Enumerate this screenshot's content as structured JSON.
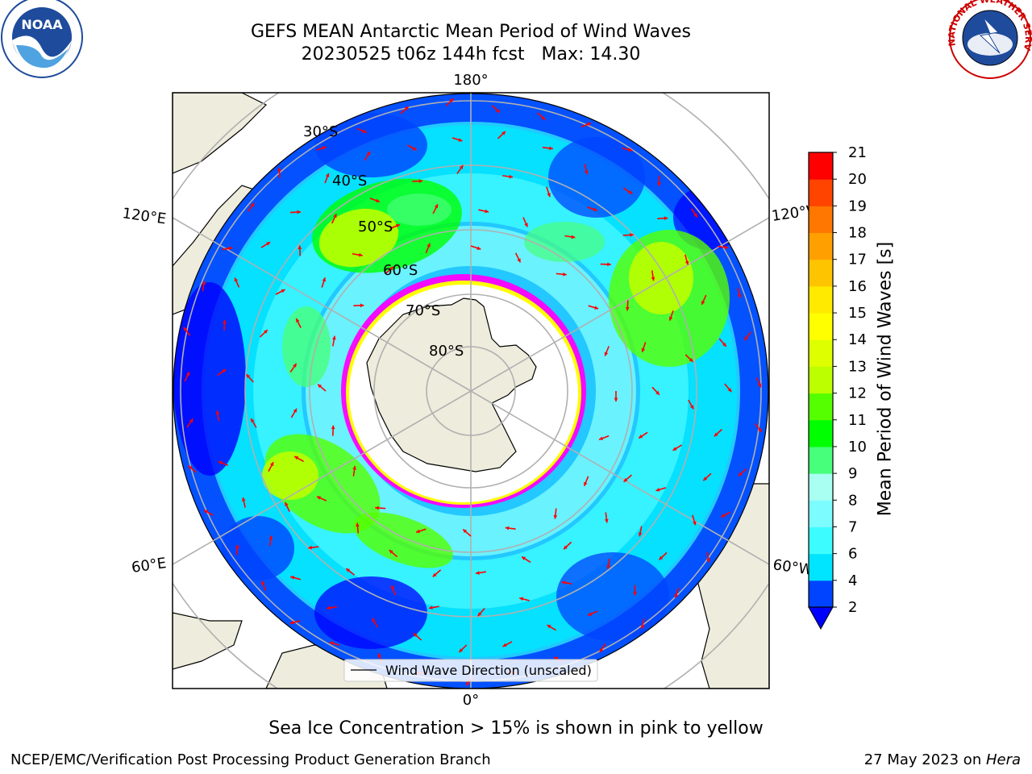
{
  "title": {
    "line1": "GEFS MEAN Antarctic Mean Period of Wind Waves",
    "line2": "20230525 t06z 144h fcst   Max: 14.30"
  },
  "map": {
    "projection": "south-polar-stereographic",
    "latitude_labels": [
      "30°S",
      "40°S",
      "50°S",
      "60°S",
      "70°S",
      "80°S"
    ],
    "longitude_labels": {
      "top": "180°",
      "bottom": "0°",
      "left_upper": "120°E",
      "left_lower": "60°E",
      "right_upper": "120°W",
      "right_lower": "60°W"
    },
    "legend_label": "Wind Wave Direction (unscaled)",
    "land_color": "#eeecdc",
    "arrow_color": "#ff0000",
    "sea_ice_colors": [
      "#ff00ff",
      "#ffff00"
    ]
  },
  "colorbar": {
    "label": "Mean Period of Wind Waves [s]",
    "ticks": [
      "2",
      "4",
      "6",
      "7",
      "8",
      "9",
      "10",
      "11",
      "12",
      "13",
      "14",
      "15",
      "16",
      "17",
      "18",
      "19",
      "20",
      "21"
    ],
    "colors": [
      "#0044ff",
      "#00e5ff",
      "#3dfcff",
      "#7dfcff",
      "#a8fff2",
      "#47ff7a",
      "#00ff00",
      "#55ff00",
      "#bbff00",
      "#ddff00",
      "#ffff00",
      "#ffea00",
      "#ffc400",
      "#ffa000",
      "#ff7700",
      "#ff4400",
      "#ff0000"
    ],
    "under_color": "#0000ff"
  },
  "note": "Sea Ice Concentration > 15% is shown in pink to yellow",
  "footer": {
    "left": "NCEP/EMC/Verification Post Processing Product Generation Branch",
    "right_date": "27 May 2023 on ",
    "right_machine": "Hera"
  },
  "logos": {
    "left": "NOAA",
    "right": "NATIONAL WEATHER SERVICE"
  }
}
